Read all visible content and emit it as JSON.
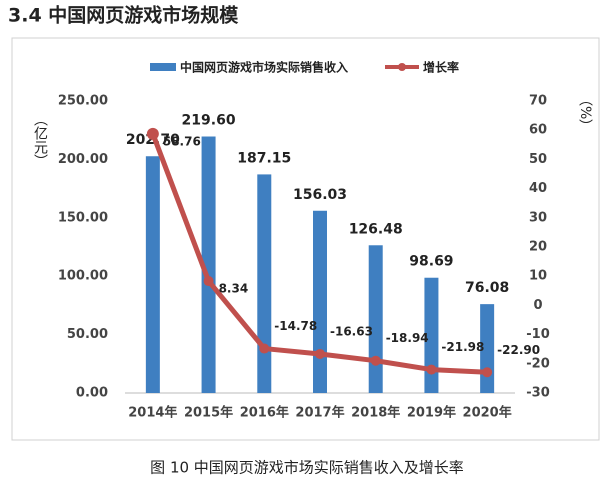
{
  "heading": "3.4  中国网页游戏市场规模",
  "caption": "图 10  中国网页游戏市场实际销售收入及增长率",
  "chart_data": {
    "type": "bar",
    "categories": [
      "2014年",
      "2015年",
      "2016年",
      "2017年",
      "2018年",
      "2019年",
      "2020年"
    ],
    "ylabel": "（亿元）",
    "y2label": "（%）",
    "ylim": [
      0,
      250
    ],
    "yticks": [
      {
        "value": 0,
        "label": "0.00"
      },
      {
        "value": 50,
        "label": "50.00"
      },
      {
        "value": 100,
        "label": "100.00"
      },
      {
        "value": 150,
        "label": "150.00"
      },
      {
        "value": 200,
        "label": "200.00"
      },
      {
        "value": 250,
        "label": "250.00"
      }
    ],
    "y2lim": [
      -30,
      70
    ],
    "y2ticks": [
      -30,
      -20,
      -10,
      0,
      10,
      20,
      30,
      40,
      50,
      60,
      70
    ],
    "series": [
      {
        "name": "中国网页游戏市场实际销售收入",
        "type": "bar",
        "color": "#3f7fc1",
        "values": [
          202.7,
          219.6,
          187.15,
          156.03,
          126.48,
          98.69,
          76.08
        ],
        "value_labels": [
          "202.70",
          "219.60",
          "187.15",
          "156.03",
          "126.48",
          "98.69",
          "76.08"
        ]
      },
      {
        "name": "增长率",
        "type": "line",
        "axis": "y2",
        "color": "#c0504d",
        "values": [
          58.76,
          8.34,
          -14.78,
          -16.63,
          -18.94,
          -21.98,
          -22.9
        ],
        "value_labels": [
          "58.76",
          "8.34",
          "-14.78",
          "-16.63",
          "-18.94",
          "-21.98",
          "-22.90"
        ]
      }
    ]
  }
}
